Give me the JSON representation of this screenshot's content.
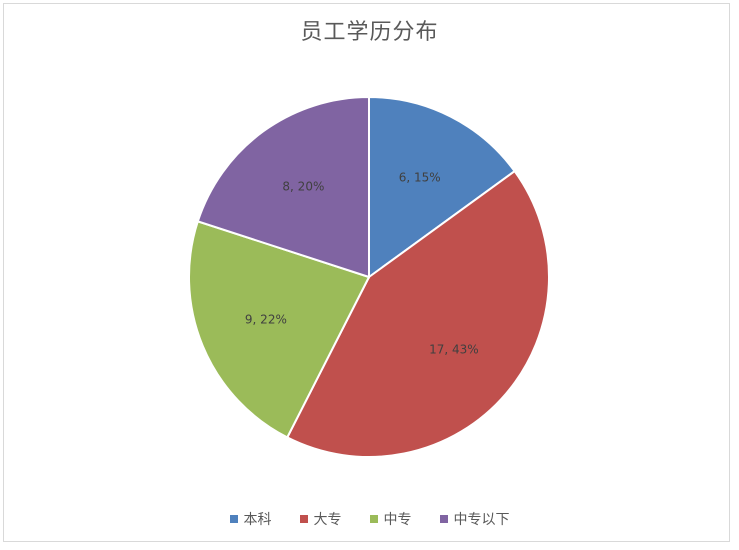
{
  "chart_data": {
    "type": "pie",
    "title": "员工学历分布",
    "categories": [
      "本科",
      "大专",
      "中专",
      "中专以下"
    ],
    "values": [
      6,
      17,
      9,
      8
    ],
    "percentages": [
      "15%",
      "43%",
      "22%",
      "20%"
    ],
    "labels": [
      "6, 15%",
      "17, 43%",
      "9, 22%",
      "8, 20%"
    ],
    "colors": [
      "#4f81bd",
      "#c0504d",
      "#9bbb59",
      "#8064a2"
    ],
    "legend_position": "bottom"
  }
}
